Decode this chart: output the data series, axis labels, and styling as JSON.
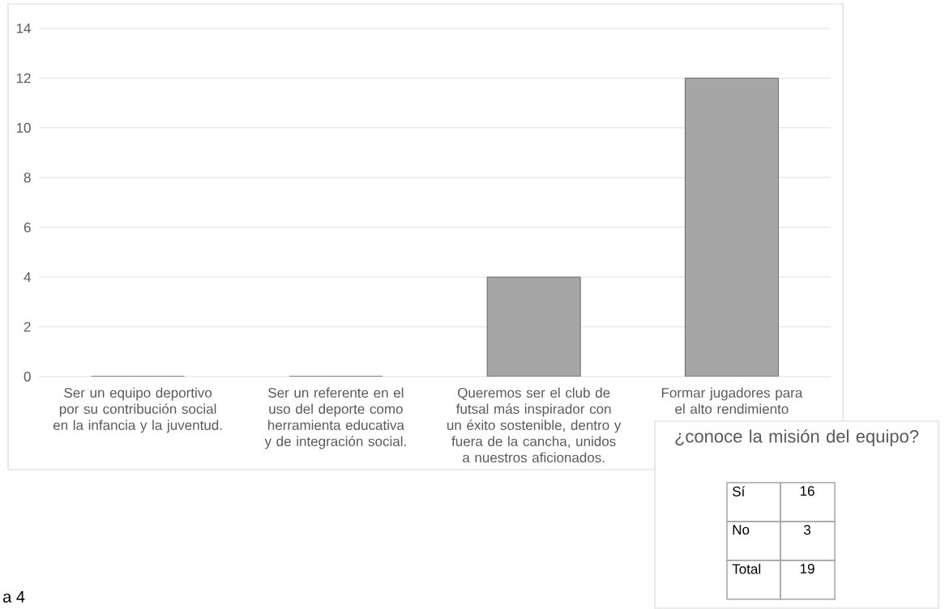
{
  "chart_data": [
    {
      "type": "bar",
      "categories": [
        "Ser un equipo deportivo por su contribución social en la infancia y la juventud.",
        "Ser un referente en el uso del deporte como herramienta educativa y de integración social.",
        "Queremos ser el club de futsal más inspirador con un éxito sostenible, dentro y fuera de la cancha, unidos a nuestros aficionados.",
        "Formar jugadores para el alto rendimiento"
      ],
      "values": [
        0,
        0,
        4,
        12
      ],
      "color": "#a6a6a6",
      "ylim": [
        0,
        14
      ],
      "yticks": [
        0,
        2,
        4,
        6,
        8,
        10,
        12,
        14
      ],
      "grid": "y",
      "annotations": [
        "a 4"
      ]
    },
    {
      "type": "other",
      "title": "¿conoce la misión del equipo?",
      "categories": [
        "Sí",
        "No",
        "Total"
      ],
      "values": [
        16,
        3,
        19
      ],
      "data_labels": true
    }
  ]
}
